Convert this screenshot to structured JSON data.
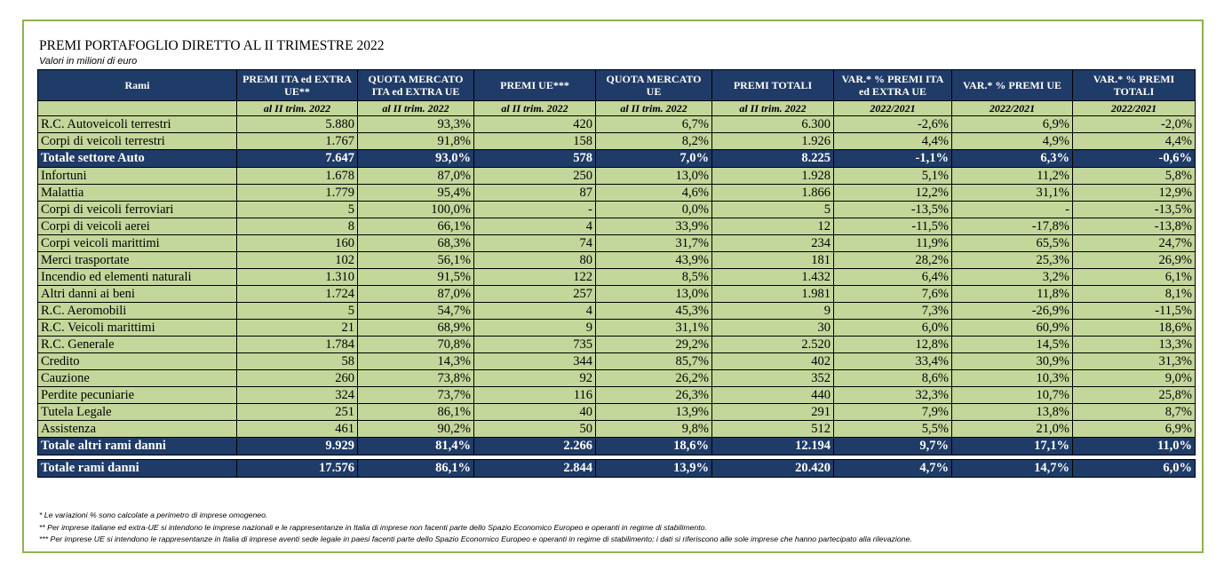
{
  "title": "PREMI PORTAFOGLIO DIRETTO AL II TRIMESTRE 2022",
  "subtitle": "Valori in milioni di euro",
  "columns": [
    "Rami",
    "PREMI ITA ed EXTRA UE**",
    "QUOTA MERCATO ITA ed EXTRA UE",
    "PREMI UE***",
    "QUOTA MERCATO UE",
    "PREMI TOTALI",
    "VAR.* % PREMI ITA ed EXTRA UE",
    "VAR.* % PREMI UE",
    "VAR.* % PREMI TOTALI"
  ],
  "subheaders": [
    "",
    "al II trim. 2022",
    "al II trim. 2022",
    "al II trim. 2022",
    "al II trim. 2022",
    "al II trim. 2022",
    "2022/2021",
    "2022/2021",
    "2022/2021"
  ],
  "auto_rows": [
    [
      "R.C. Autoveicoli terrestri",
      "5.880",
      "93,3%",
      "420",
      "6,7%",
      "6.300",
      "-2,6%",
      "6,9%",
      "-2,0%"
    ],
    [
      "Corpi di veicoli terrestri",
      "1.767",
      "91,8%",
      "158",
      "8,2%",
      "1.926",
      "4,4%",
      "4,9%",
      "4,4%"
    ]
  ],
  "total_auto": [
    "Totale settore Auto",
    "7.647",
    "93,0%",
    "578",
    "7,0%",
    "8.225",
    "-1,1%",
    "6,3%",
    "-0,6%"
  ],
  "other_rows": [
    [
      "Infortuni",
      "1.678",
      "87,0%",
      "250",
      "13,0%",
      "1.928",
      "5,1%",
      "11,2%",
      "5,8%"
    ],
    [
      "Malattia",
      "1.779",
      "95,4%",
      "87",
      "4,6%",
      "1.866",
      "12,2%",
      "31,1%",
      "12,9%"
    ],
    [
      "Corpi di veicoli ferroviari",
      "5",
      "100,0%",
      "-",
      "0,0%",
      "5",
      "-13,5%",
      "-",
      "-13,5%"
    ],
    [
      "Corpi di veicoli aerei",
      "8",
      "66,1%",
      "4",
      "33,9%",
      "12",
      "-11,5%",
      "-17,8%",
      "-13,8%"
    ],
    [
      "Corpi veicoli marittimi",
      "160",
      "68,3%",
      "74",
      "31,7%",
      "234",
      "11,9%",
      "65,5%",
      "24,7%"
    ],
    [
      "Merci trasportate",
      "102",
      "56,1%",
      "80",
      "43,9%",
      "181",
      "28,2%",
      "25,3%",
      "26,9%"
    ],
    [
      "Incendio ed elementi naturali",
      "1.310",
      "91,5%",
      "122",
      "8,5%",
      "1.432",
      "6,4%",
      "3,2%",
      "6,1%"
    ],
    [
      "Altri danni ai beni",
      "1.724",
      "87,0%",
      "257",
      "13,0%",
      "1.981",
      "7,6%",
      "11,8%",
      "8,1%"
    ],
    [
      "R.C. Aeromobili",
      "5",
      "54,7%",
      "4",
      "45,3%",
      "9",
      "7,3%",
      "-26,9%",
      "-11,5%"
    ],
    [
      "R.C. Veicoli marittimi",
      "21",
      "68,9%",
      "9",
      "31,1%",
      "30",
      "6,0%",
      "60,9%",
      "18,6%"
    ],
    [
      "R.C. Generale",
      "1.784",
      "70,8%",
      "735",
      "29,2%",
      "2.520",
      "12,8%",
      "14,5%",
      "13,3%"
    ],
    [
      "Credito",
      "58",
      "14,3%",
      "344",
      "85,7%",
      "402",
      "33,4%",
      "30,9%",
      "31,3%"
    ],
    [
      "Cauzione",
      "260",
      "73,8%",
      "92",
      "26,2%",
      "352",
      "8,6%",
      "10,3%",
      "9,0%"
    ],
    [
      "Perdite pecuniarie",
      "324",
      "73,7%",
      "116",
      "26,3%",
      "440",
      "32,3%",
      "10,7%",
      "25,8%"
    ],
    [
      "Tutela Legale",
      "251",
      "86,1%",
      "40",
      "13,9%",
      "291",
      "7,9%",
      "13,8%",
      "8,7%"
    ],
    [
      "Assistenza",
      "461",
      "90,2%",
      "50",
      "9,8%",
      "512",
      "5,5%",
      "21,0%",
      "6,9%"
    ]
  ],
  "total_other": [
    "Totale altri rami danni",
    "9.929",
    "81,4%",
    "2.266",
    "18,6%",
    "12.194",
    "9,7%",
    "17,1%",
    "11,0%"
  ],
  "total_all": [
    "Totale rami danni",
    "17.576",
    "86,1%",
    "2.844",
    "13,9%",
    "20.420",
    "4,7%",
    "14,7%",
    "6,0%"
  ],
  "notes": [
    "* Le variazioni % sono calcolate a perimetro di imprese omogeneo.",
    "** Per imprese italiane ed extra-UE si intendono le imprese nazionali e le rappresentanze in Italia di imprese non facenti parte dello Spazio Economico Europeo e operanti in regime di stabilimento.",
    "*** Per imprese UE si intendono le rappresentanze in Italia di imprese aventi sede legale in paesi facenti parte dello Spazio Economico Europeo e operanti in regime di stabilimento; i dati si riferiscono alle sole imprese che hanno partecipato alla rilevazione."
  ],
  "colors": {
    "header_bg": "#1f3b68",
    "row_bg": "#c4d79b",
    "frame": "#8fb34f"
  }
}
